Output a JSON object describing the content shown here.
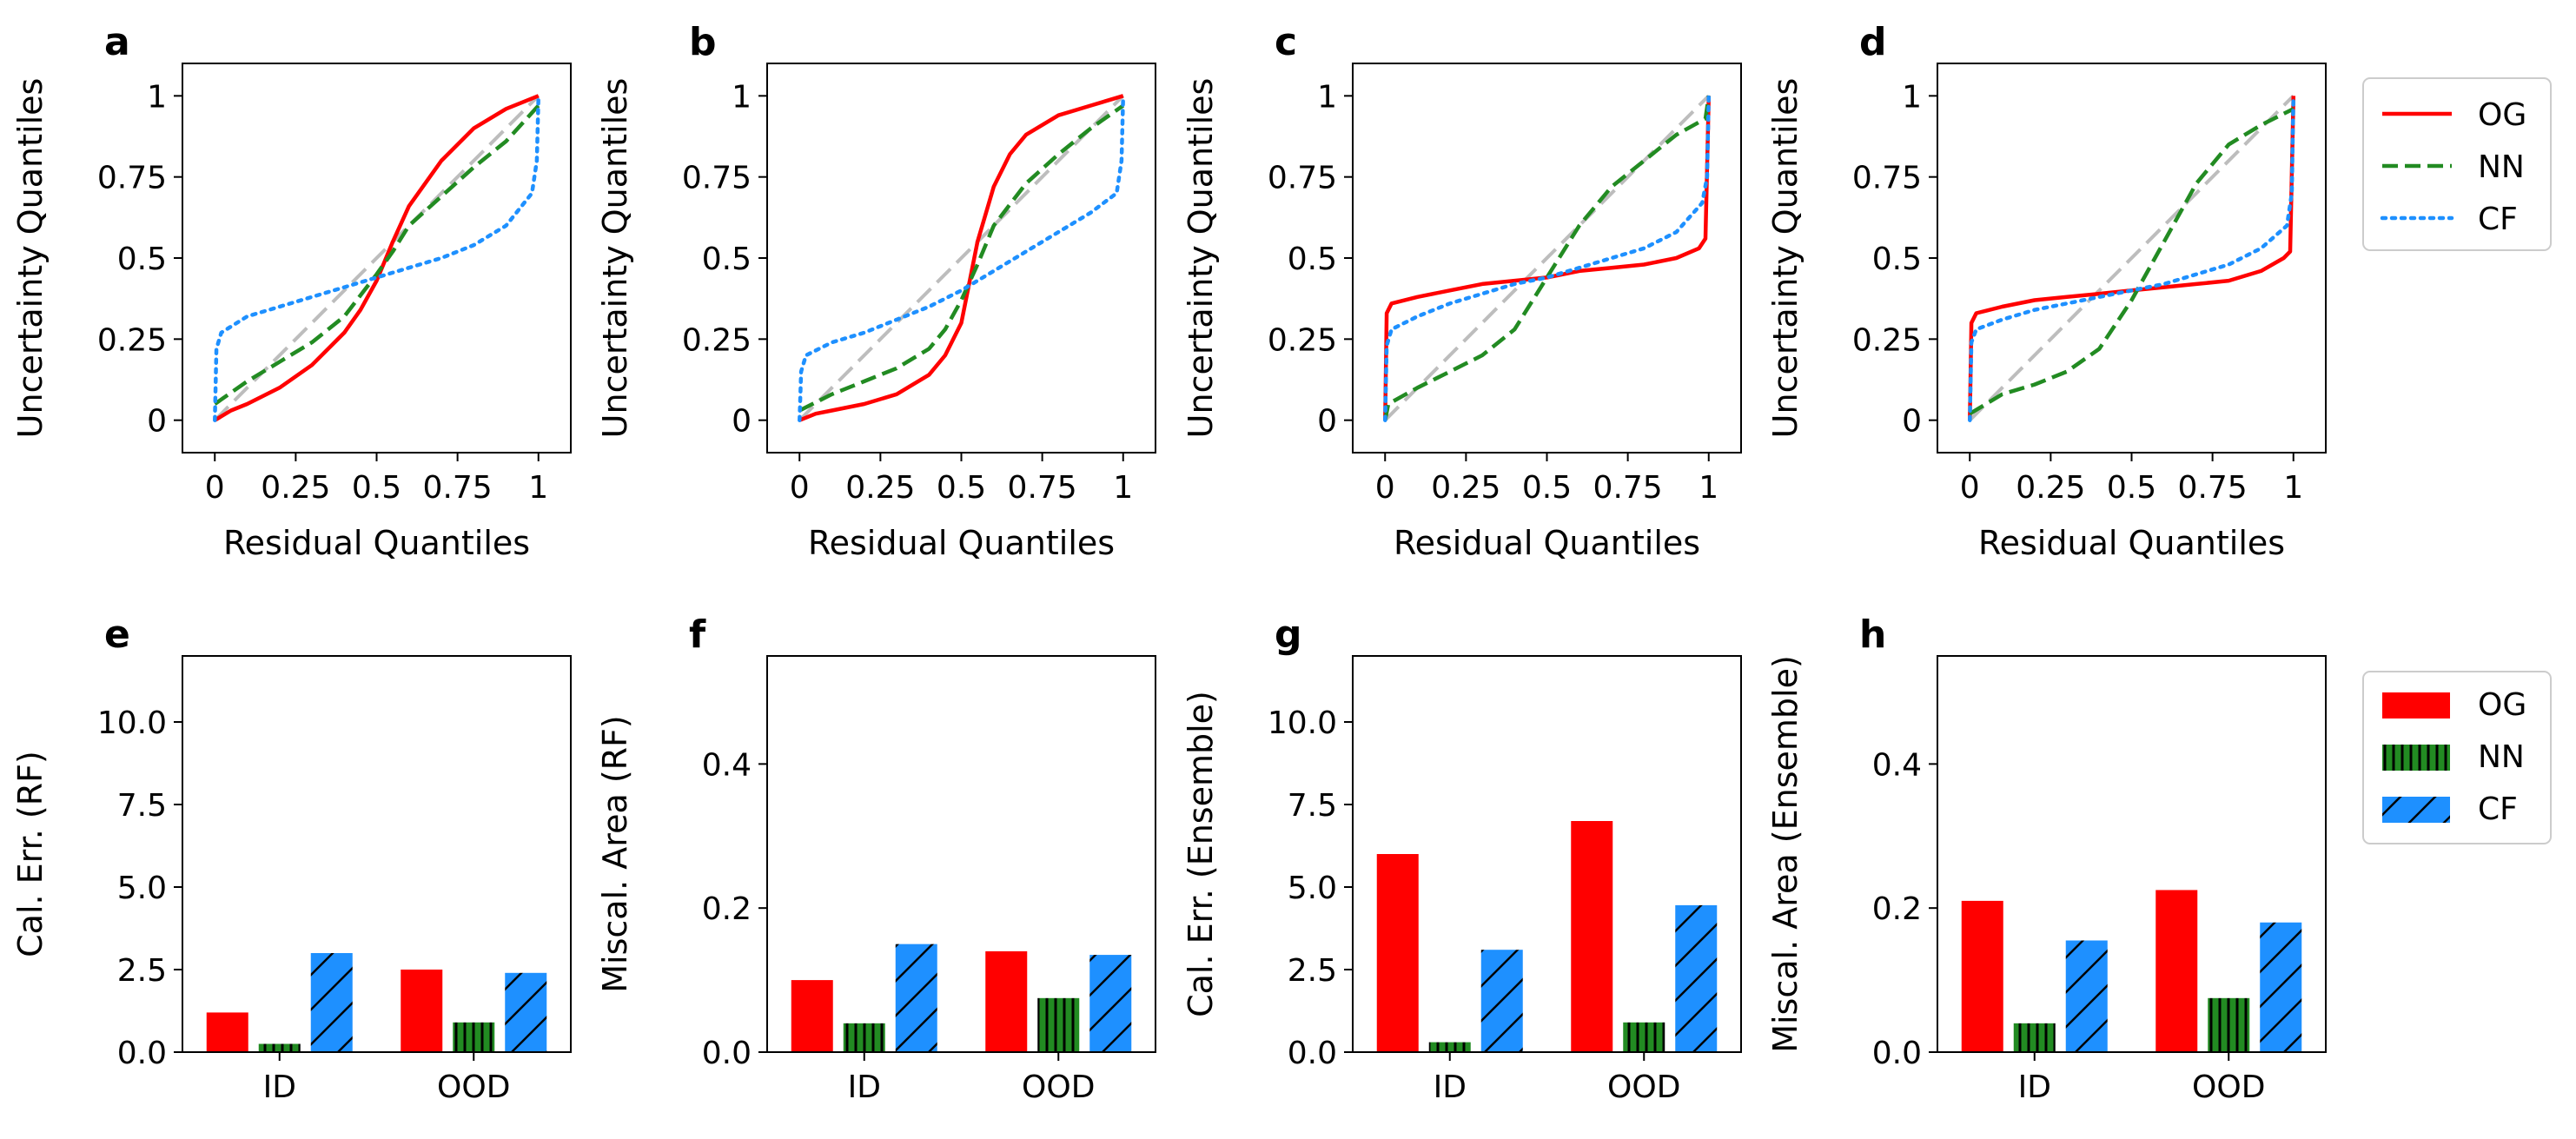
{
  "colors": {
    "OG": "#ff0000",
    "NN": "#228b22",
    "CF": "#1e90ff",
    "diag": "#bdbdbd"
  },
  "legend_line": {
    "entries": [
      {
        "key": "OG",
        "label": "OG",
        "style": "solid"
      },
      {
        "key": "NN",
        "label": "NN",
        "style": "dashed"
      },
      {
        "key": "CF",
        "label": "CF",
        "style": "dotted"
      }
    ]
  },
  "legend_bar": {
    "entries": [
      {
        "key": "OG",
        "label": "OG",
        "hatch": "none"
      },
      {
        "key": "NN",
        "label": "NN",
        "hatch": "vertical"
      },
      {
        "key": "CF",
        "label": "CF",
        "hatch": "diagonal"
      }
    ]
  },
  "chart_data": [
    {
      "panel": "a",
      "type": "line",
      "xlabel": "Residual Quantiles",
      "ylabel": "Uncertainty Quantiles",
      "xlim": [
        -0.1,
        1.1
      ],
      "ylim": [
        -0.1,
        1.1
      ],
      "xticks": [
        0,
        0.25,
        0.5,
        0.75,
        1
      ],
      "xtick_labels": [
        "0",
        "0.25",
        "0.5",
        "0.75",
        "1"
      ],
      "yticks": [
        0,
        0.25,
        0.5,
        0.75,
        1
      ],
      "ytick_labels": [
        "0",
        "0.25",
        "0.5",
        "0.75",
        "1"
      ],
      "series": [
        {
          "name": "OG",
          "x": [
            0,
            0.05,
            0.1,
            0.2,
            0.3,
            0.4,
            0.45,
            0.5,
            0.55,
            0.6,
            0.7,
            0.8,
            0.9,
            1
          ],
          "y": [
            0,
            0.03,
            0.05,
            0.1,
            0.17,
            0.27,
            0.34,
            0.43,
            0.55,
            0.66,
            0.8,
            0.9,
            0.96,
            1
          ]
        },
        {
          "name": "NN",
          "x": [
            0,
            0.1,
            0.2,
            0.3,
            0.4,
            0.5,
            0.55,
            0.6,
            0.7,
            0.8,
            0.9,
            1
          ],
          "y": [
            0.05,
            0.12,
            0.18,
            0.24,
            0.32,
            0.45,
            0.52,
            0.6,
            0.69,
            0.78,
            0.86,
            0.97
          ]
        },
        {
          "name": "CF",
          "x": [
            0,
            0.005,
            0.02,
            0.1,
            0.2,
            0.3,
            0.4,
            0.5,
            0.6,
            0.7,
            0.8,
            0.9,
            0.98,
            0.995,
            1
          ],
          "y": [
            0,
            0.22,
            0.27,
            0.32,
            0.35,
            0.38,
            0.41,
            0.44,
            0.47,
            0.5,
            0.54,
            0.6,
            0.7,
            0.8,
            1
          ]
        }
      ]
    },
    {
      "panel": "b",
      "type": "line",
      "xlabel": "Residual Quantiles",
      "ylabel": "Uncertainty Quantiles",
      "xlim": [
        -0.1,
        1.1
      ],
      "ylim": [
        -0.1,
        1.1
      ],
      "xticks": [
        0,
        0.25,
        0.5,
        0.75,
        1
      ],
      "xtick_labels": [
        "0",
        "0.25",
        "0.5",
        "0.75",
        "1"
      ],
      "yticks": [
        0,
        0.25,
        0.5,
        0.75,
        1
      ],
      "ytick_labels": [
        "0",
        "0.25",
        "0.5",
        "0.75",
        "1"
      ],
      "series": [
        {
          "name": "OG",
          "x": [
            0,
            0.05,
            0.1,
            0.2,
            0.3,
            0.4,
            0.45,
            0.5,
            0.55,
            0.6,
            0.65,
            0.7,
            0.8,
            0.9,
            1
          ],
          "y": [
            0,
            0.02,
            0.03,
            0.05,
            0.08,
            0.14,
            0.2,
            0.3,
            0.55,
            0.72,
            0.82,
            0.88,
            0.94,
            0.97,
            1
          ]
        },
        {
          "name": "NN",
          "x": [
            0,
            0.1,
            0.2,
            0.3,
            0.4,
            0.45,
            0.5,
            0.55,
            0.6,
            0.7,
            0.8,
            0.9,
            1
          ],
          "y": [
            0.03,
            0.08,
            0.12,
            0.16,
            0.22,
            0.28,
            0.37,
            0.48,
            0.6,
            0.73,
            0.82,
            0.9,
            0.97
          ]
        },
        {
          "name": "CF",
          "x": [
            0,
            0.005,
            0.02,
            0.1,
            0.2,
            0.3,
            0.4,
            0.5,
            0.6,
            0.7,
            0.8,
            0.9,
            0.98,
            0.995,
            1
          ],
          "y": [
            0,
            0.15,
            0.2,
            0.24,
            0.27,
            0.31,
            0.35,
            0.4,
            0.46,
            0.52,
            0.58,
            0.64,
            0.7,
            0.8,
            1
          ]
        }
      ]
    },
    {
      "panel": "c",
      "type": "line",
      "xlabel": "Residual Quantiles",
      "ylabel": "Uncertainty Quantiles",
      "xlim": [
        -0.1,
        1.1
      ],
      "ylim": [
        -0.1,
        1.1
      ],
      "xticks": [
        0,
        0.25,
        0.5,
        0.75,
        1
      ],
      "xtick_labels": [
        "0",
        "0.25",
        "0.5",
        "0.75",
        "1"
      ],
      "yticks": [
        0,
        0.25,
        0.5,
        0.75,
        1
      ],
      "ytick_labels": [
        "0",
        "0.25",
        "0.5",
        "0.75",
        "1"
      ],
      "series": [
        {
          "name": "OG",
          "x": [
            0,
            0.005,
            0.02,
            0.1,
            0.2,
            0.3,
            0.4,
            0.5,
            0.6,
            0.7,
            0.8,
            0.9,
            0.97,
            0.99,
            1
          ],
          "y": [
            0,
            0.33,
            0.36,
            0.38,
            0.4,
            0.42,
            0.43,
            0.44,
            0.46,
            0.47,
            0.48,
            0.5,
            0.53,
            0.56,
            1
          ]
        },
        {
          "name": "NN",
          "x": [
            0,
            0.01,
            0.1,
            0.2,
            0.3,
            0.4,
            0.5,
            0.6,
            0.7,
            0.8,
            0.9,
            0.99,
            1
          ],
          "y": [
            0,
            0.05,
            0.1,
            0.15,
            0.2,
            0.28,
            0.44,
            0.6,
            0.72,
            0.8,
            0.88,
            0.93,
            1
          ]
        },
        {
          "name": "CF",
          "x": [
            0,
            0.005,
            0.02,
            0.1,
            0.2,
            0.3,
            0.4,
            0.5,
            0.6,
            0.7,
            0.8,
            0.9,
            0.98,
            0.995,
            1
          ],
          "y": [
            0,
            0.23,
            0.28,
            0.32,
            0.36,
            0.39,
            0.42,
            0.44,
            0.47,
            0.5,
            0.53,
            0.58,
            0.67,
            0.75,
            1
          ]
        }
      ]
    },
    {
      "panel": "d",
      "type": "line",
      "xlabel": "Residual Quantiles",
      "ylabel": "Uncertainty Quantiles",
      "xlim": [
        -0.1,
        1.1
      ],
      "ylim": [
        -0.1,
        1.1
      ],
      "xticks": [
        0,
        0.25,
        0.5,
        0.75,
        1
      ],
      "xtick_labels": [
        "0",
        "0.25",
        "0.5",
        "0.75",
        "1"
      ],
      "yticks": [
        0,
        0.25,
        0.5,
        0.75,
        1
      ],
      "ytick_labels": [
        "0",
        "0.25",
        "0.5",
        "0.75",
        "1"
      ],
      "series": [
        {
          "name": "OG",
          "x": [
            0,
            0.005,
            0.02,
            0.1,
            0.2,
            0.3,
            0.4,
            0.5,
            0.6,
            0.7,
            0.8,
            0.9,
            0.97,
            0.99,
            1
          ],
          "y": [
            0,
            0.3,
            0.33,
            0.35,
            0.37,
            0.38,
            0.39,
            0.4,
            0.41,
            0.42,
            0.43,
            0.46,
            0.5,
            0.52,
            1
          ]
        },
        {
          "name": "NN",
          "x": [
            0,
            0.1,
            0.2,
            0.3,
            0.4,
            0.5,
            0.6,
            0.7,
            0.8,
            0.9,
            1
          ],
          "y": [
            0.02,
            0.08,
            0.11,
            0.15,
            0.22,
            0.37,
            0.55,
            0.73,
            0.85,
            0.91,
            0.96
          ]
        },
        {
          "name": "CF",
          "x": [
            0,
            0.005,
            0.02,
            0.1,
            0.2,
            0.3,
            0.4,
            0.5,
            0.6,
            0.7,
            0.8,
            0.9,
            0.98,
            0.995,
            1
          ],
          "y": [
            0,
            0.24,
            0.28,
            0.31,
            0.34,
            0.36,
            0.38,
            0.4,
            0.42,
            0.45,
            0.48,
            0.53,
            0.6,
            0.7,
            1
          ]
        }
      ]
    },
    {
      "panel": "e",
      "type": "bar",
      "ylabel": "Cal. Err. (RF)",
      "xlabel": "",
      "categories": [
        "ID",
        "OOD"
      ],
      "ylim": [
        0,
        12
      ],
      "yticks": [
        0,
        2.5,
        5,
        7.5,
        10
      ],
      "ytick_labels": [
        "0.0",
        "2.5",
        "5.0",
        "7.5",
        "10.0"
      ],
      "series": [
        {
          "name": "OG",
          "values": [
            1.2,
            2.5
          ]
        },
        {
          "name": "NN",
          "values": [
            0.25,
            0.9
          ]
        },
        {
          "name": "CF",
          "values": [
            3.0,
            2.4
          ]
        }
      ]
    },
    {
      "panel": "f",
      "type": "bar",
      "ylabel": "Miscal. Area (RF)",
      "xlabel": "",
      "categories": [
        "ID",
        "OOD"
      ],
      "ylim": [
        0,
        0.55
      ],
      "yticks": [
        0,
        0.2,
        0.4
      ],
      "ytick_labels": [
        "0.0",
        "0.2",
        "0.4"
      ],
      "series": [
        {
          "name": "OG",
          "values": [
            0.1,
            0.14
          ]
        },
        {
          "name": "NN",
          "values": [
            0.04,
            0.075
          ]
        },
        {
          "name": "CF",
          "values": [
            0.15,
            0.135
          ]
        }
      ]
    },
    {
      "panel": "g",
      "type": "bar",
      "ylabel": "Cal. Err. (Ensemble)",
      "xlabel": "",
      "categories": [
        "ID",
        "OOD"
      ],
      "ylim": [
        0,
        12
      ],
      "yticks": [
        0,
        2.5,
        5,
        7.5,
        10
      ],
      "ytick_labels": [
        "0.0",
        "2.5",
        "5.0",
        "7.5",
        "10.0"
      ],
      "series": [
        {
          "name": "OG",
          "values": [
            6.0,
            7.0
          ]
        },
        {
          "name": "NN",
          "values": [
            0.3,
            0.9
          ]
        },
        {
          "name": "CF",
          "values": [
            3.1,
            4.45
          ]
        }
      ]
    },
    {
      "panel": "h",
      "type": "bar",
      "ylabel": "Miscal. Area (Ensemble)",
      "xlabel": "",
      "categories": [
        "ID",
        "OOD"
      ],
      "ylim": [
        0,
        0.55
      ],
      "yticks": [
        0,
        0.2,
        0.4
      ],
      "ytick_labels": [
        "0.0",
        "0.2",
        "0.4"
      ],
      "series": [
        {
          "name": "OG",
          "values": [
            0.21,
            0.225
          ]
        },
        {
          "name": "NN",
          "values": [
            0.04,
            0.075
          ]
        },
        {
          "name": "CF",
          "values": [
            0.155,
            0.18
          ]
        }
      ]
    }
  ]
}
